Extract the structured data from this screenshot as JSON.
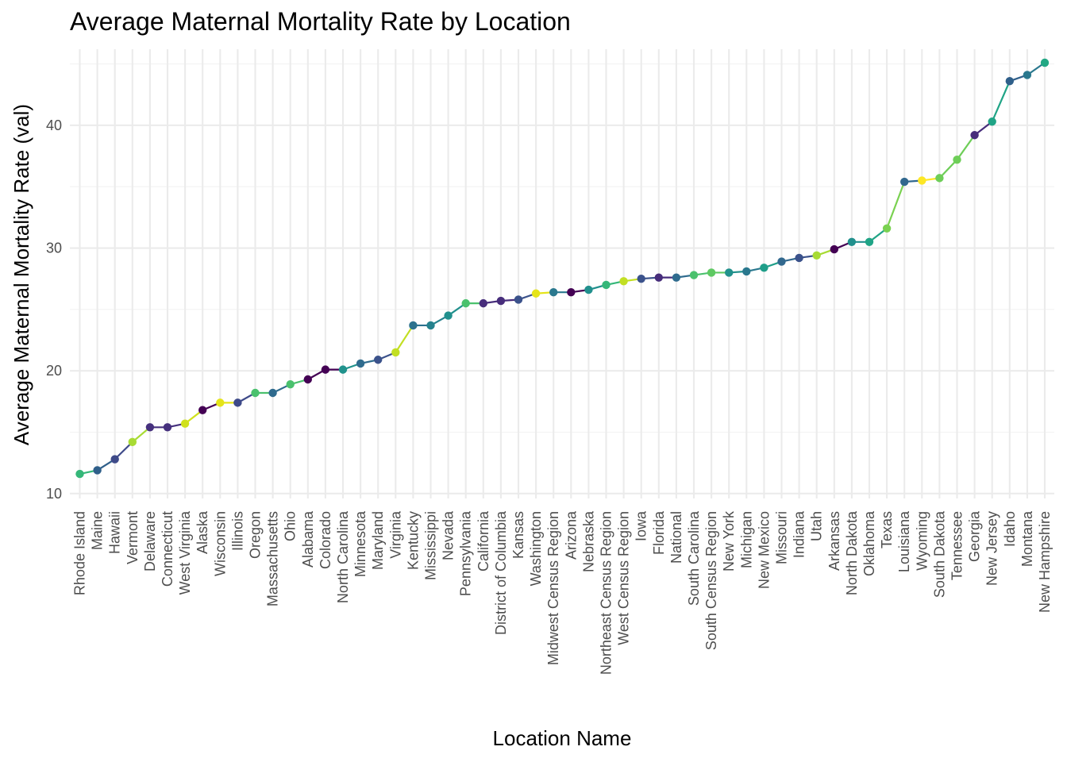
{
  "chart_data": {
    "type": "line",
    "title": "Average Maternal Mortality Rate by Location",
    "xlabel": "Location Name",
    "ylabel": "Average Maternal Mortality Rate (val)",
    "ylim": [
      9.6,
      46.2
    ],
    "yticks": [
      10,
      20,
      30,
      40
    ],
    "grid": true,
    "legend": "none",
    "categories": [
      "Rhode Island",
      "Maine",
      "Hawaii",
      "Vermont",
      "Delaware",
      "Connecticut",
      "West Virginia",
      "Alaska",
      "Wisconsin",
      "Illinois",
      "Oregon",
      "Massachusetts",
      "Ohio",
      "Alabama",
      "Colorado",
      "North Carolina",
      "Minnesota",
      "Maryland",
      "Virginia",
      "Kentucky",
      "Mississippi",
      "Nevada",
      "Pennsylvania",
      "California",
      "District of Columbia",
      "Kansas",
      "Washington",
      "Midwest Census Region",
      "Arizona",
      "Nebraska",
      "Northeast Census Region",
      "West Census Region",
      "Iowa",
      "Florida",
      "National",
      "South Carolina",
      "South Census Region",
      "New York",
      "Michigan",
      "New Mexico",
      "Missouri",
      "Indiana",
      "Utah",
      "Arkansas",
      "North Dakota",
      "Oklahoma",
      "Texas",
      "Louisiana",
      "Wyoming",
      "South Dakota",
      "Tennessee",
      "Georgia",
      "New Jersey",
      "Idaho",
      "Montana",
      "New Hampshire"
    ],
    "values": [
      11.6,
      11.9,
      12.8,
      14.2,
      15.4,
      15.4,
      15.7,
      16.8,
      17.4,
      17.4,
      18.2,
      18.2,
      18.9,
      19.3,
      20.1,
      20.1,
      20.6,
      20.9,
      21.5,
      23.7,
      23.7,
      24.5,
      25.5,
      25.5,
      25.7,
      25.8,
      26.3,
      26.4,
      26.4,
      26.6,
      27.0,
      27.3,
      27.5,
      27.6,
      27.6,
      27.8,
      28.0,
      28.0,
      28.1,
      28.4,
      28.9,
      29.2,
      29.4,
      29.9,
      30.5,
      30.5,
      31.6,
      35.4,
      35.5,
      35.7,
      37.2,
      39.2,
      40.3,
      43.6,
      44.1,
      45.1
    ],
    "colors": [
      "#35b779",
      "#2f5f8a",
      "#3e4a89",
      "#a8db34",
      "#46317e",
      "#46317e",
      "#d0e11c",
      "#440154",
      "#e5e419",
      "#3e4a89",
      "#4ac16d",
      "#2f6b8e",
      "#4ac16d",
      "#440154",
      "#440154",
      "#20928c",
      "#2f6b8e",
      "#3b528b",
      "#c2df23",
      "#2c728e",
      "#26828e",
      "#21908d",
      "#4ac16d",
      "#472d7b",
      "#472d7b",
      "#3b528b",
      "#e5e419",
      "#2a788e",
      "#440154",
      "#21908d",
      "#35b779",
      "#c2df23",
      "#3b528b",
      "#472d7b",
      "#2f6b8e",
      "#4ac16d",
      "#5ec962",
      "#21918c",
      "#2a788e",
      "#1f9e89",
      "#31688e",
      "#3b528b",
      "#a8db34",
      "#440154",
      "#21908d",
      "#20a486",
      "#7ad151",
      "#31688e",
      "#fde725",
      "#6ece58",
      "#6ece58",
      "#472d7b",
      "#20a486",
      "#2f5f8a",
      "#2a788e",
      "#22a884"
    ]
  }
}
